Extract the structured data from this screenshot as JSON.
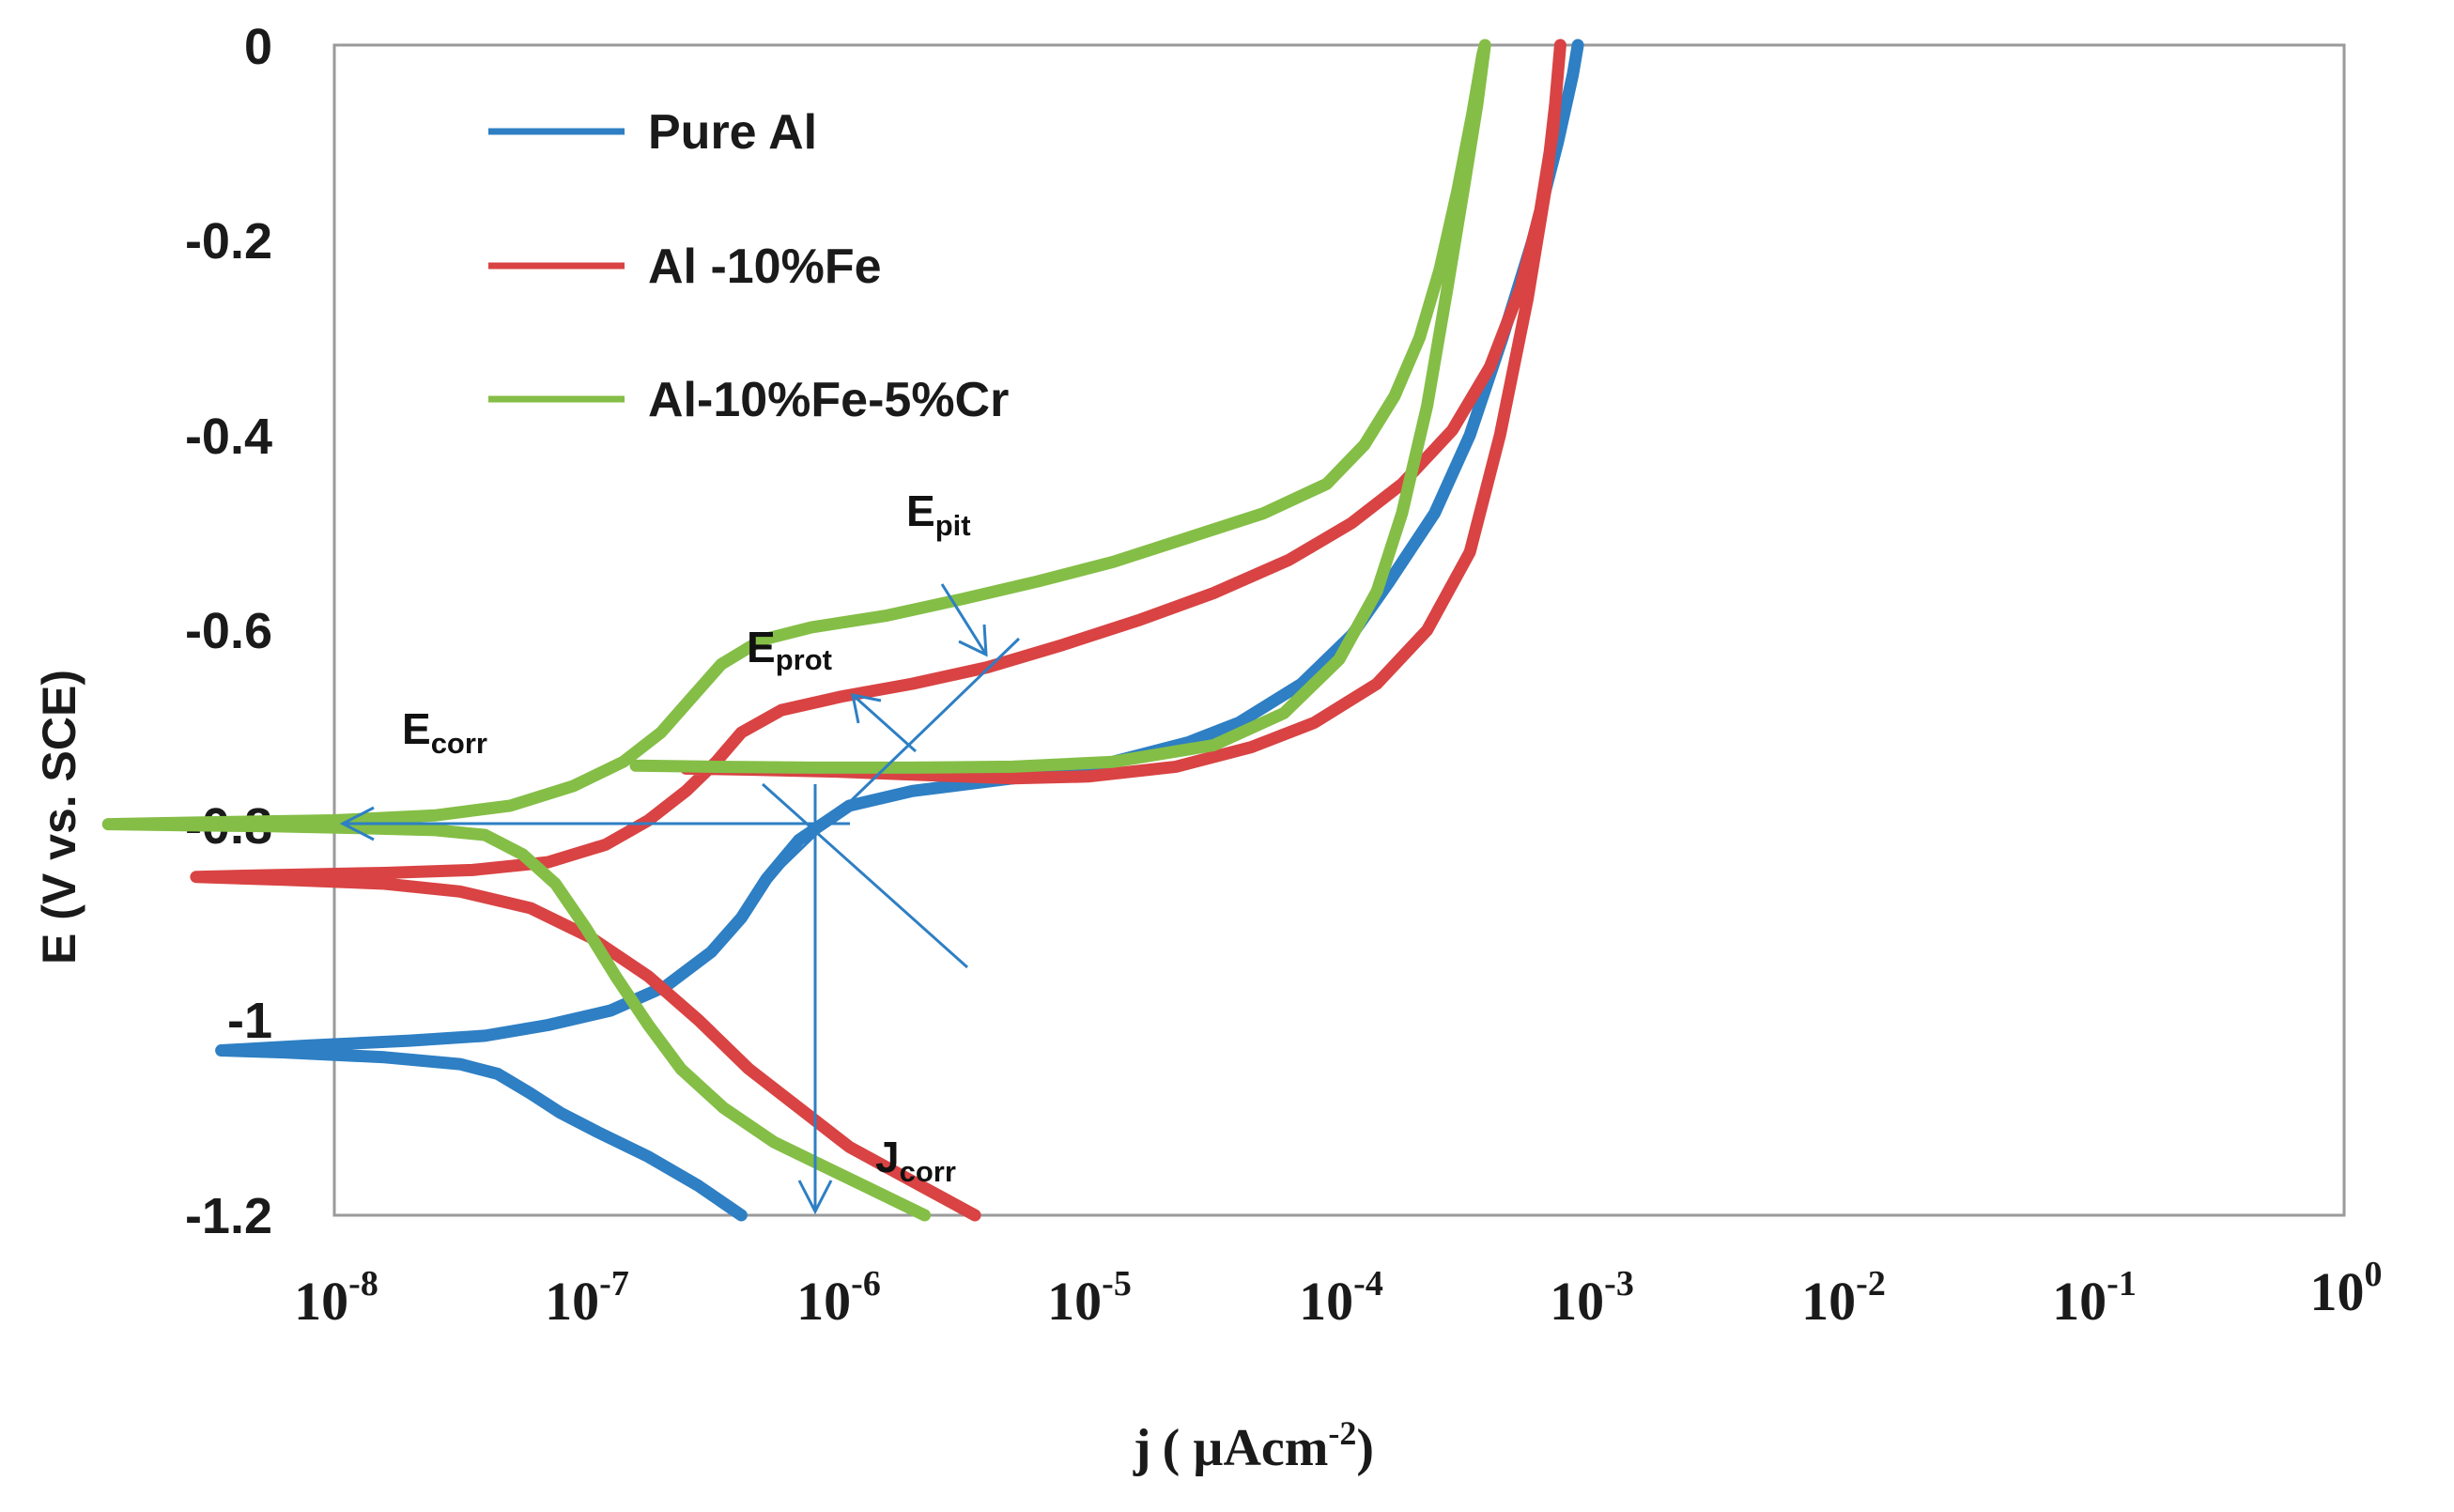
{
  "chart_data": {
    "type": "line",
    "x_scale": "log10",
    "xlim_exponent": [
      -8,
      0
    ],
    "ylim": [
      -1.2,
      0
    ],
    "yticks": [
      0,
      -0.2,
      -0.4,
      -0.6,
      -0.8,
      -1,
      -1.2
    ],
    "ytick_labels": [
      "0",
      "-0.2",
      "-0.4",
      "-0.6",
      "-0.8",
      "-1",
      "-1.2"
    ],
    "xticks_exponent": [
      -8,
      -7,
      -6,
      -5,
      -4,
      -3,
      -2,
      -1,
      0
    ],
    "xtick_base": "10",
    "xtick_exponent_labels": [
      "-8",
      "-7",
      "-6",
      "-5",
      "-4",
      "-3",
      "-2",
      "-1",
      "0"
    ],
    "ylabel": "E (V  vs. SCE)",
    "xlabel_main": "j",
    "xlabel_unit": "( µAcm",
    "xlabel_unit_exp": "-2",
    "xlabel_close": ")",
    "grid": false,
    "legend_position": "top-left",
    "series": [
      {
        "name": "Pure Al",
        "color": "#2e7fc4",
        "points": [
          [
            -6.38,
            -1.2
          ],
          [
            -6.55,
            -1.17
          ],
          [
            -6.75,
            -1.14
          ],
          [
            -6.95,
            -1.115
          ],
          [
            -7.1,
            -1.095
          ],
          [
            -7.22,
            -1.075
          ],
          [
            -7.35,
            -1.055
          ],
          [
            -7.5,
            -1.045
          ],
          [
            -7.8,
            -1.038
          ],
          [
            -8.2,
            -1.033
          ],
          [
            -8.45,
            -1.031
          ],
          [
            -8.1,
            -1.026
          ],
          [
            -7.7,
            -1.021
          ],
          [
            -7.4,
            -1.016
          ],
          [
            -7.15,
            -1.005
          ],
          [
            -6.9,
            -0.99
          ],
          [
            -6.68,
            -0.965
          ],
          [
            -6.5,
            -0.93
          ],
          [
            -6.38,
            -0.895
          ],
          [
            -6.28,
            -0.855
          ],
          [
            -6.15,
            -0.815
          ],
          [
            -5.95,
            -0.78
          ],
          [
            -5.7,
            -0.765
          ],
          [
            -5.3,
            -0.752
          ],
          [
            -4.9,
            -0.735
          ],
          [
            -4.6,
            -0.715
          ],
          [
            -4.4,
            -0.695
          ],
          [
            -4.15,
            -0.655
          ],
          [
            -3.95,
            -0.605
          ],
          [
            -3.8,
            -0.55
          ],
          [
            -3.62,
            -0.48
          ],
          [
            -3.48,
            -0.4
          ],
          [
            -3.35,
            -0.3
          ],
          [
            -3.23,
            -0.2
          ],
          [
            -3.13,
            -0.1
          ],
          [
            -3.07,
            -0.03
          ],
          [
            -3.05,
            0.0
          ]
        ]
      },
      {
        "name": "Al -10%Fe",
        "color": "#d94343",
        "points": [
          [
            -5.45,
            -1.2
          ],
          [
            -5.7,
            -1.165
          ],
          [
            -5.95,
            -1.13
          ],
          [
            -6.15,
            -1.09
          ],
          [
            -6.35,
            -1.05
          ],
          [
            -6.55,
            -1.0
          ],
          [
            -6.75,
            -0.955
          ],
          [
            -6.98,
            -0.915
          ],
          [
            -7.22,
            -0.885
          ],
          [
            -7.5,
            -0.868
          ],
          [
            -7.8,
            -0.86
          ],
          [
            -8.2,
            -0.856
          ],
          [
            -8.55,
            -0.853
          ],
          [
            -8.2,
            -0.851
          ],
          [
            -7.8,
            -0.849
          ],
          [
            -7.45,
            -0.846
          ],
          [
            -7.15,
            -0.838
          ],
          [
            -6.92,
            -0.82
          ],
          [
            -6.75,
            -0.795
          ],
          [
            -6.6,
            -0.765
          ],
          [
            -6.48,
            -0.735
          ],
          [
            -6.38,
            -0.705
          ],
          [
            -6.22,
            -0.682
          ],
          [
            -5.98,
            -0.668
          ],
          [
            -5.7,
            -0.655
          ],
          [
            -5.4,
            -0.638
          ],
          [
            -5.1,
            -0.615
          ],
          [
            -4.8,
            -0.59
          ],
          [
            -4.5,
            -0.562
          ],
          [
            -4.2,
            -0.528
          ],
          [
            -3.95,
            -0.49
          ],
          [
            -3.75,
            -0.45
          ],
          [
            -3.55,
            -0.395
          ],
          [
            -3.4,
            -0.33
          ],
          [
            -3.28,
            -0.25
          ],
          [
            -3.2,
            -0.17
          ],
          [
            -3.15,
            -0.09
          ],
          [
            -3.13,
            -0.03
          ],
          [
            -3.12,
            0.0
          ],
          [
            -3.14,
            -0.06
          ],
          [
            -3.18,
            -0.15
          ],
          [
            -3.25,
            -0.26
          ],
          [
            -3.36,
            -0.4
          ],
          [
            -3.48,
            -0.52
          ],
          [
            -3.65,
            -0.6
          ],
          [
            -3.85,
            -0.655
          ],
          [
            -4.1,
            -0.695
          ],
          [
            -4.35,
            -0.72
          ],
          [
            -4.65,
            -0.74
          ],
          [
            -5.0,
            -0.75
          ],
          [
            -5.3,
            -0.752
          ],
          [
            -5.7,
            -0.748
          ],
          [
            -6.0,
            -0.745
          ],
          [
            -6.35,
            -0.743
          ],
          [
            -6.6,
            -0.742
          ]
        ]
      },
      {
        "name": "Al-10%Fe-5%Cr",
        "color": "#84be46",
        "points": [
          [
            -5.65,
            -1.2
          ],
          [
            -5.85,
            -1.175
          ],
          [
            -6.05,
            -1.15
          ],
          [
            -6.25,
            -1.125
          ],
          [
            -6.45,
            -1.09
          ],
          [
            -6.62,
            -1.05
          ],
          [
            -6.75,
            -1.005
          ],
          [
            -6.88,
            -0.955
          ],
          [
            -7.0,
            -0.905
          ],
          [
            -7.12,
            -0.86
          ],
          [
            -7.25,
            -0.83
          ],
          [
            -7.4,
            -0.81
          ],
          [
            -7.6,
            -0.805
          ],
          [
            -7.9,
            -0.803
          ],
          [
            -8.25,
            -0.801
          ],
          [
            -8.6,
            -0.8
          ],
          [
            -8.9,
            -0.799
          ],
          [
            -8.5,
            -0.797
          ],
          [
            -8.0,
            -0.795
          ],
          [
            -7.6,
            -0.79
          ],
          [
            -7.3,
            -0.78
          ],
          [
            -7.05,
            -0.76
          ],
          [
            -6.85,
            -0.735
          ],
          [
            -6.7,
            -0.705
          ],
          [
            -6.58,
            -0.67
          ],
          [
            -6.46,
            -0.635
          ],
          [
            -6.3,
            -0.61
          ],
          [
            -6.1,
            -0.597
          ],
          [
            -5.8,
            -0.585
          ],
          [
            -5.5,
            -0.568
          ],
          [
            -5.2,
            -0.55
          ],
          [
            -4.9,
            -0.53
          ],
          [
            -4.6,
            -0.505
          ],
          [
            -4.3,
            -0.48
          ],
          [
            -4.05,
            -0.45
          ],
          [
            -3.9,
            -0.41
          ],
          [
            -3.78,
            -0.36
          ],
          [
            -3.68,
            -0.3
          ],
          [
            -3.6,
            -0.23
          ],
          [
            -3.53,
            -0.15
          ],
          [
            -3.47,
            -0.07
          ],
          [
            -3.43,
            -0.01
          ],
          [
            -3.42,
            0.0
          ],
          [
            -3.45,
            -0.06
          ],
          [
            -3.5,
            -0.14
          ],
          [
            -3.57,
            -0.25
          ],
          [
            -3.65,
            -0.37
          ],
          [
            -3.75,
            -0.48
          ],
          [
            -3.85,
            -0.56
          ],
          [
            -4.0,
            -0.63
          ],
          [
            -4.22,
            -0.685
          ],
          [
            -4.5,
            -0.718
          ],
          [
            -4.9,
            -0.735
          ],
          [
            -5.3,
            -0.74
          ],
          [
            -5.7,
            -0.741
          ],
          [
            -6.1,
            -0.741
          ],
          [
            -6.5,
            -0.74
          ],
          [
            -6.8,
            -0.739
          ]
        ]
      }
    ],
    "annotations": [
      {
        "base": "E",
        "sub": "corr"
      },
      {
        "base": "E",
        "sub": "prot"
      },
      {
        "base": "E",
        "sub": "pit"
      },
      {
        "base": "J",
        "sub": "corr"
      }
    ]
  }
}
